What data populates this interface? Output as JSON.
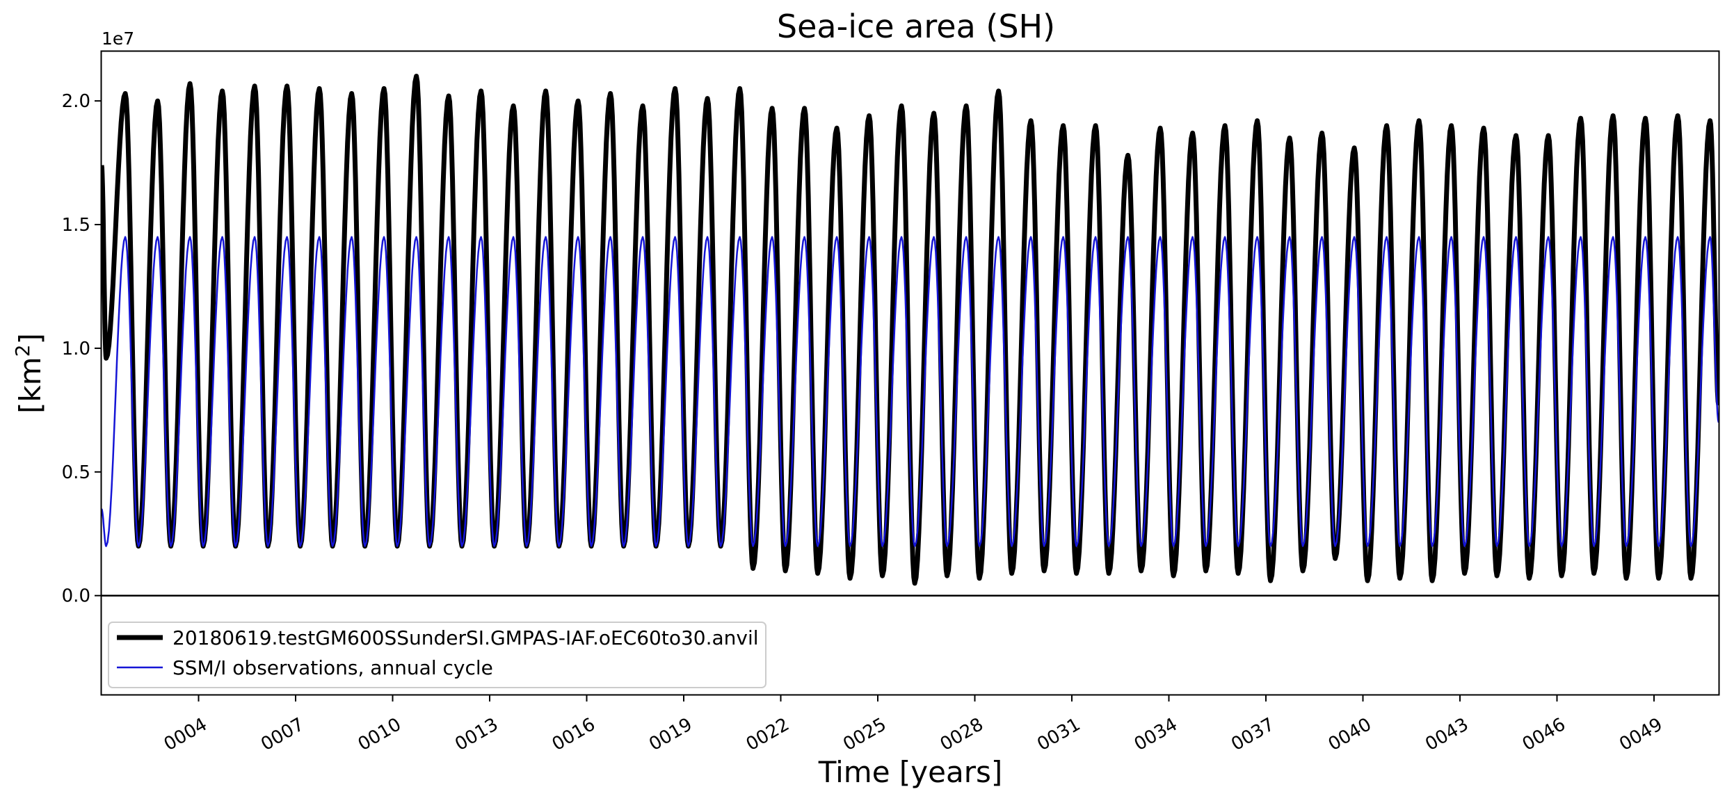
{
  "chart_data": {
    "type": "line",
    "title": "Sea-ice area (SH)",
    "xlabel": "Time [years]",
    "ylabel_main": "[km",
    "ylabel_sup": "2",
    "ylabel_close": "]",
    "y_offset_label": "1e7",
    "xlim": [
      1.0,
      51.0
    ],
    "ylim": [
      -0.4,
      2.2
    ],
    "x_ticks": [
      {
        "value": 4,
        "label": "0004"
      },
      {
        "value": 7,
        "label": "0007"
      },
      {
        "value": 10,
        "label": "0010"
      },
      {
        "value": 13,
        "label": "0013"
      },
      {
        "value": 16,
        "label": "0016"
      },
      {
        "value": 19,
        "label": "0019"
      },
      {
        "value": 22,
        "label": "0022"
      },
      {
        "value": 25,
        "label": "0025"
      },
      {
        "value": 28,
        "label": "0028"
      },
      {
        "value": 31,
        "label": "0031"
      },
      {
        "value": 34,
        "label": "0034"
      },
      {
        "value": 37,
        "label": "0037"
      },
      {
        "value": 40,
        "label": "0040"
      },
      {
        "value": 43,
        "label": "0043"
      },
      {
        "value": 46,
        "label": "0046"
      },
      {
        "value": 49,
        "label": "0049"
      }
    ],
    "y_ticks": [
      {
        "value": 0.0,
        "label": "0.0"
      },
      {
        "value": 0.5,
        "label": "0.5"
      },
      {
        "value": 1.0,
        "label": "1.0"
      },
      {
        "value": 1.5,
        "label": "1.5"
      },
      {
        "value": 2.0,
        "label": "2.0"
      }
    ],
    "zero_line": 0.0,
    "legend_position": "lower-left",
    "series": [
      {
        "name": "20180619.testGM600SSunderSI.GMPAS-IAF.oEC60to30.anvil",
        "color": "#000000",
        "style": "thick",
        "cycle_days": {
          "min_day": 52,
          "max_day": 268
        },
        "start_value": 1.74,
        "first_min": 0.96,
        "annual_max": [
          2.03,
          2.0,
          2.07,
          2.04,
          2.06,
          2.06,
          2.05,
          2.03,
          2.05,
          2.1,
          2.02,
          2.04,
          1.98,
          2.04,
          2.0,
          2.03,
          1.98,
          2.05,
          2.01,
          2.05,
          1.97,
          1.97,
          1.89,
          1.94,
          1.98,
          1.95,
          1.98,
          2.04,
          1.92,
          1.9,
          1.9,
          1.78,
          1.89,
          1.87,
          1.9,
          1.92,
          1.85,
          1.87,
          1.81,
          1.9,
          1.92,
          1.9,
          1.89,
          1.86,
          1.86,
          1.93,
          1.94,
          1.93,
          1.94,
          1.92
        ],
        "annual_min": [
          0.2,
          0.2,
          0.2,
          0.2,
          0.2,
          0.2,
          0.2,
          0.2,
          0.2,
          0.2,
          0.2,
          0.2,
          0.2,
          0.2,
          0.2,
          0.2,
          0.2,
          0.2,
          0.2,
          0.2,
          0.11,
          0.1,
          0.09,
          0.07,
          0.08,
          0.05,
          0.08,
          0.07,
          0.09,
          0.1,
          0.09,
          0.09,
          0.1,
          0.08,
          0.1,
          0.09,
          0.06,
          0.1,
          0.15,
          0.06,
          0.07,
          0.06,
          0.09,
          0.08,
          0.07,
          0.08,
          0.09,
          0.07,
          0.07,
          0.07
        ],
        "end_value": 0.77
      },
      {
        "name": "SSM/I observations, annual cycle",
        "color": "#1515d6",
        "style": "thin",
        "cycle_days": {
          "min_day": 52,
          "max_day": 268
        },
        "start_value": 0.35,
        "first_min": 0.2,
        "cycle_max": 1.45,
        "cycle_min": 0.2,
        "end_value": 0.7
      }
    ]
  }
}
